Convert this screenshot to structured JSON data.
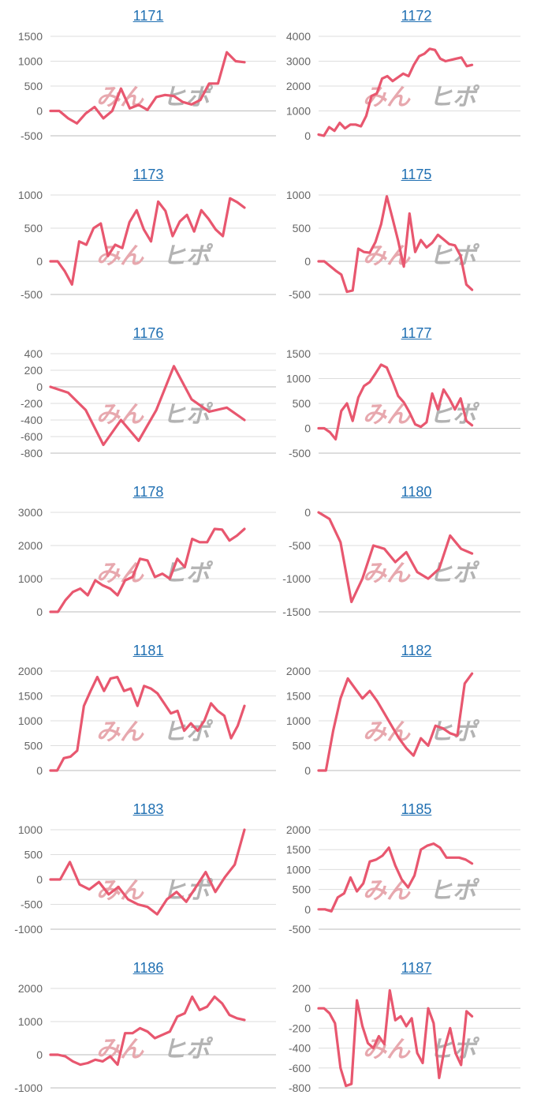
{
  "colors": {
    "line": "#e8576f",
    "grid": "#dddddd",
    "zero": "#bbbbbb",
    "tick": "#666666",
    "title": "#1f6fb2",
    "watermark_pink": "#e7a8ae",
    "watermark_gray": "#b3b3b3"
  },
  "watermark": {
    "left": "みん",
    "right": "ヒポ"
  },
  "chart_data": [
    {
      "id": "1171",
      "title": "1171",
      "type": "line",
      "ylim": [
        -500,
        1500
      ],
      "yticks": [
        1500,
        1000,
        500,
        0,
        -500
      ],
      "values": [
        0,
        0,
        -150,
        -250,
        -50,
        80,
        -150,
        0,
        450,
        50,
        120,
        20,
        280,
        320,
        300,
        180,
        130,
        220,
        550,
        550,
        1180,
        1000,
        980
      ]
    },
    {
      "id": "1172",
      "title": "1172",
      "type": "line",
      "ylim": [
        0,
        4000
      ],
      "yticks": [
        4000,
        3000,
        2000,
        1000,
        0
      ],
      "values": [
        50,
        0,
        350,
        200,
        520,
        300,
        450,
        450,
        380,
        800,
        1600,
        1700,
        2300,
        2400,
        2200,
        2350,
        2500,
        2400,
        2850,
        3200,
        3300,
        3500,
        3450,
        3100,
        3000,
        3050,
        3100,
        3150,
        2800,
        2850
      ]
    },
    {
      "id": "1173",
      "title": "1173",
      "type": "line",
      "ylim": [
        -500,
        1000
      ],
      "yticks": [
        1000,
        500,
        0,
        -500
      ],
      "values": [
        0,
        0,
        -150,
        -350,
        300,
        250,
        500,
        570,
        80,
        250,
        200,
        590,
        770,
        480,
        300,
        900,
        760,
        380,
        600,
        700,
        450,
        770,
        640,
        480,
        380,
        950,
        890,
        810
      ]
    },
    {
      "id": "1175",
      "title": "1175",
      "type": "line",
      "ylim": [
        -500,
        1000
      ],
      "yticks": [
        1000,
        500,
        0,
        -500
      ],
      "values": [
        0,
        0,
        -70,
        -140,
        -200,
        -460,
        -440,
        190,
        140,
        130,
        290,
        560,
        980,
        650,
        310,
        -80,
        720,
        140,
        320,
        210,
        280,
        400,
        330,
        260,
        240,
        80,
        -350,
        -430
      ]
    },
    {
      "id": "1176",
      "title": "1176",
      "type": "line",
      "ylim": [
        -800,
        400
      ],
      "yticks": [
        400,
        200,
        0,
        -200,
        -400,
        -600,
        -800
      ],
      "values": [
        0,
        -70,
        -280,
        -700,
        -400,
        -650,
        -280,
        250,
        -150,
        -300,
        -250,
        -400
      ]
    },
    {
      "id": "1177",
      "title": "1177",
      "type": "line",
      "ylim": [
        -500,
        1500
      ],
      "yticks": [
        1500,
        1000,
        500,
        0,
        -500
      ],
      "values": [
        0,
        0,
        -80,
        -220,
        350,
        500,
        150,
        620,
        850,
        930,
        1100,
        1280,
        1220,
        950,
        650,
        520,
        320,
        80,
        30,
        120,
        700,
        380,
        780,
        600,
        380,
        600,
        150,
        60
      ]
    },
    {
      "id": "1178",
      "title": "1178",
      "type": "line",
      "ylim": [
        0,
        3000
      ],
      "yticks": [
        3000,
        2000,
        1000,
        0
      ],
      "values": [
        0,
        0,
        350,
        600,
        700,
        500,
        950,
        800,
        700,
        500,
        950,
        1050,
        1600,
        1550,
        1050,
        1150,
        1000,
        1600,
        1350,
        2200,
        2100,
        2100,
        2500,
        2480,
        2150,
        2300,
        2500
      ]
    },
    {
      "id": "1180",
      "title": "1180",
      "type": "line",
      "ylim": [
        -1500,
        0
      ],
      "yticks": [
        0,
        -500,
        -1000,
        -1500
      ],
      "values": [
        0,
        -100,
        -450,
        -1350,
        -1000,
        -500,
        -550,
        -750,
        -600,
        -900,
        -1000,
        -850,
        -350,
        -550,
        -620
      ]
    },
    {
      "id": "1181",
      "title": "1181",
      "type": "line",
      "ylim": [
        0,
        2000
      ],
      "yticks": [
        2000,
        1500,
        1000,
        500,
        0
      ],
      "values": [
        0,
        0,
        250,
        280,
        400,
        1300,
        1600,
        1880,
        1600,
        1850,
        1880,
        1600,
        1650,
        1300,
        1700,
        1650,
        1550,
        1350,
        1150,
        1200,
        800,
        950,
        800,
        1000,
        1350,
        1200,
        1100,
        650,
        900,
        1300
      ]
    },
    {
      "id": "1182",
      "title": "1182",
      "type": "line",
      "ylim": [
        0,
        2000
      ],
      "yticks": [
        2000,
        1500,
        1000,
        500,
        0
      ],
      "values": [
        0,
        0,
        800,
        1450,
        1850,
        1650,
        1450,
        1600,
        1400,
        1150,
        900,
        650,
        450,
        300,
        650,
        500,
        900,
        850,
        750,
        700,
        1750,
        1950
      ]
    },
    {
      "id": "1183",
      "title": "1183",
      "type": "line",
      "ylim": [
        -1000,
        1000
      ],
      "yticks": [
        1000,
        500,
        0,
        -500,
        -1000
      ],
      "values": [
        0,
        0,
        350,
        -100,
        -200,
        -50,
        -300,
        -150,
        -400,
        -500,
        -550,
        -700,
        -400,
        -250,
        -450,
        -150,
        150,
        -250,
        50,
        300,
        1000
      ]
    },
    {
      "id": "1185",
      "title": "1185",
      "type": "line",
      "ylim": [
        -500,
        2000
      ],
      "yticks": [
        2000,
        1500,
        1000,
        500,
        0,
        -500
      ],
      "values": [
        0,
        0,
        -50,
        300,
        400,
        800,
        450,
        650,
        1200,
        1250,
        1350,
        1550,
        1100,
        750,
        550,
        850,
        1500,
        1600,
        1650,
        1550,
        1300,
        1300,
        1300,
        1250,
        1150
      ]
    },
    {
      "id": "1186",
      "title": "1186",
      "type": "line",
      "ylim": [
        -1000,
        2000
      ],
      "yticks": [
        2000,
        1000,
        0,
        -1000
      ],
      "values": [
        0,
        0,
        -50,
        -200,
        -300,
        -250,
        -150,
        -200,
        -50,
        -300,
        650,
        650,
        800,
        700,
        500,
        600,
        700,
        1150,
        1250,
        1750,
        1350,
        1450,
        1750,
        1550,
        1200,
        1100,
        1050
      ]
    },
    {
      "id": "1187",
      "title": "1187",
      "type": "line",
      "ylim": [
        -800,
        200
      ],
      "yticks": [
        200,
        0,
        -200,
        -400,
        -600,
        -800
      ],
      "values": [
        0,
        0,
        -50,
        -150,
        -600,
        -780,
        -760,
        80,
        -180,
        -350,
        -400,
        -280,
        -360,
        180,
        -120,
        -80,
        -180,
        -100,
        -450,
        -550,
        0,
        -150,
        -700,
        -400,
        -200,
        -450,
        -570,
        -30,
        -80
      ]
    }
  ]
}
